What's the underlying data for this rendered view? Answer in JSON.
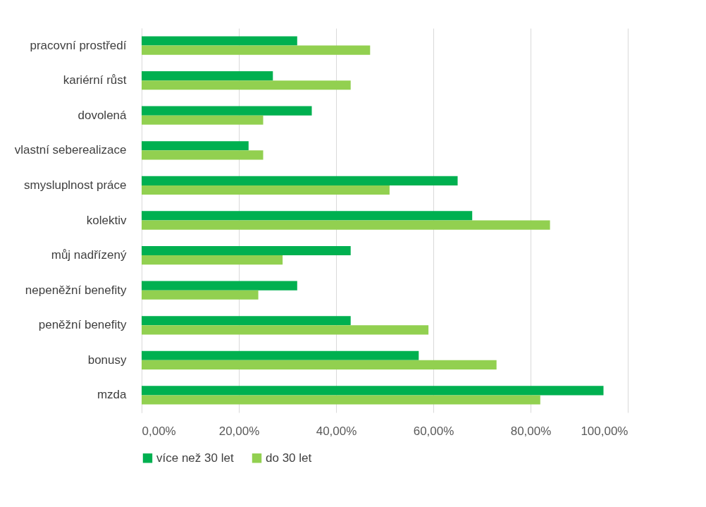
{
  "chart_data": {
    "type": "bar",
    "orientation": "horizontal",
    "categories": [
      "pracovní prostředí",
      "kariérní růst",
      "dovolená",
      "vlastní seberealizace",
      "smysluplnost práce",
      "kolektiv",
      "můj nadřízený",
      "nepeněžní benefity",
      "peněžní benefity",
      "bonusy",
      "mzda"
    ],
    "series": [
      {
        "name": "více než 30 let",
        "color": "#00b050",
        "values": [
          32,
          27,
          35,
          22,
          65,
          68,
          43,
          32,
          43,
          57,
          95
        ]
      },
      {
        "name": "do 30 let",
        "color": "#92d050",
        "values": [
          47,
          43,
          25,
          25,
          51,
          84,
          29,
          24,
          59,
          73,
          82
        ]
      }
    ],
    "xlim": [
      0,
      100
    ],
    "xticks": [
      {
        "value": 0,
        "label": "0,00%"
      },
      {
        "value": 20,
        "label": "20,00%"
      },
      {
        "value": 40,
        "label": "40,00%"
      },
      {
        "value": 60,
        "label": "60,00%"
      },
      {
        "value": 80,
        "label": "80,00%"
      },
      {
        "value": 100,
        "label": "100,00%"
      }
    ],
    "grid": "x",
    "legend": "bottom"
  }
}
